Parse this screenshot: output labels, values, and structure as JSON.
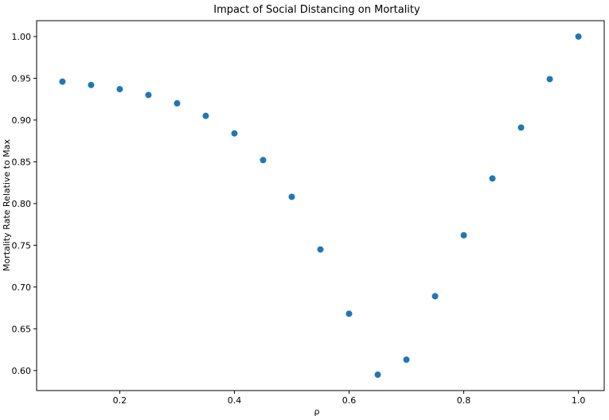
{
  "chart_data": {
    "type": "scatter",
    "title": "Impact of Social Distancing on Mortality",
    "xlabel": "ρ",
    "ylabel": "Mortality Rate Relative to Max",
    "xlim": [
      0.055,
      1.045
    ],
    "ylim": [
      0.576,
      1.019
    ],
    "x_ticks": [
      0.2,
      0.4,
      0.6,
      0.8,
      1.0
    ],
    "x_tick_labels": [
      "0.2",
      "0.4",
      "0.6",
      "0.8",
      "1.0"
    ],
    "y_ticks": [
      0.6,
      0.65,
      0.7,
      0.75,
      0.8,
      0.85,
      0.9,
      0.95,
      1.0
    ],
    "y_tick_labels": [
      "0.60",
      "0.65",
      "0.70",
      "0.75",
      "0.80",
      "0.85",
      "0.90",
      "0.95",
      "1.00"
    ],
    "grid": false,
    "color": "#1f77b4",
    "series": [
      {
        "x": [
          0.1,
          0.15,
          0.2,
          0.25,
          0.3,
          0.35,
          0.4,
          0.45,
          0.5,
          0.55,
          0.6,
          0.65,
          0.7,
          0.75,
          0.8,
          0.85,
          0.9,
          0.95,
          1.0
        ],
        "y": [
          0.946,
          0.942,
          0.937,
          0.93,
          0.92,
          0.905,
          0.884,
          0.852,
          0.808,
          0.745,
          0.668,
          0.595,
          0.613,
          0.689,
          0.762,
          0.83,
          0.891,
          0.949,
          1.0
        ]
      }
    ]
  }
}
